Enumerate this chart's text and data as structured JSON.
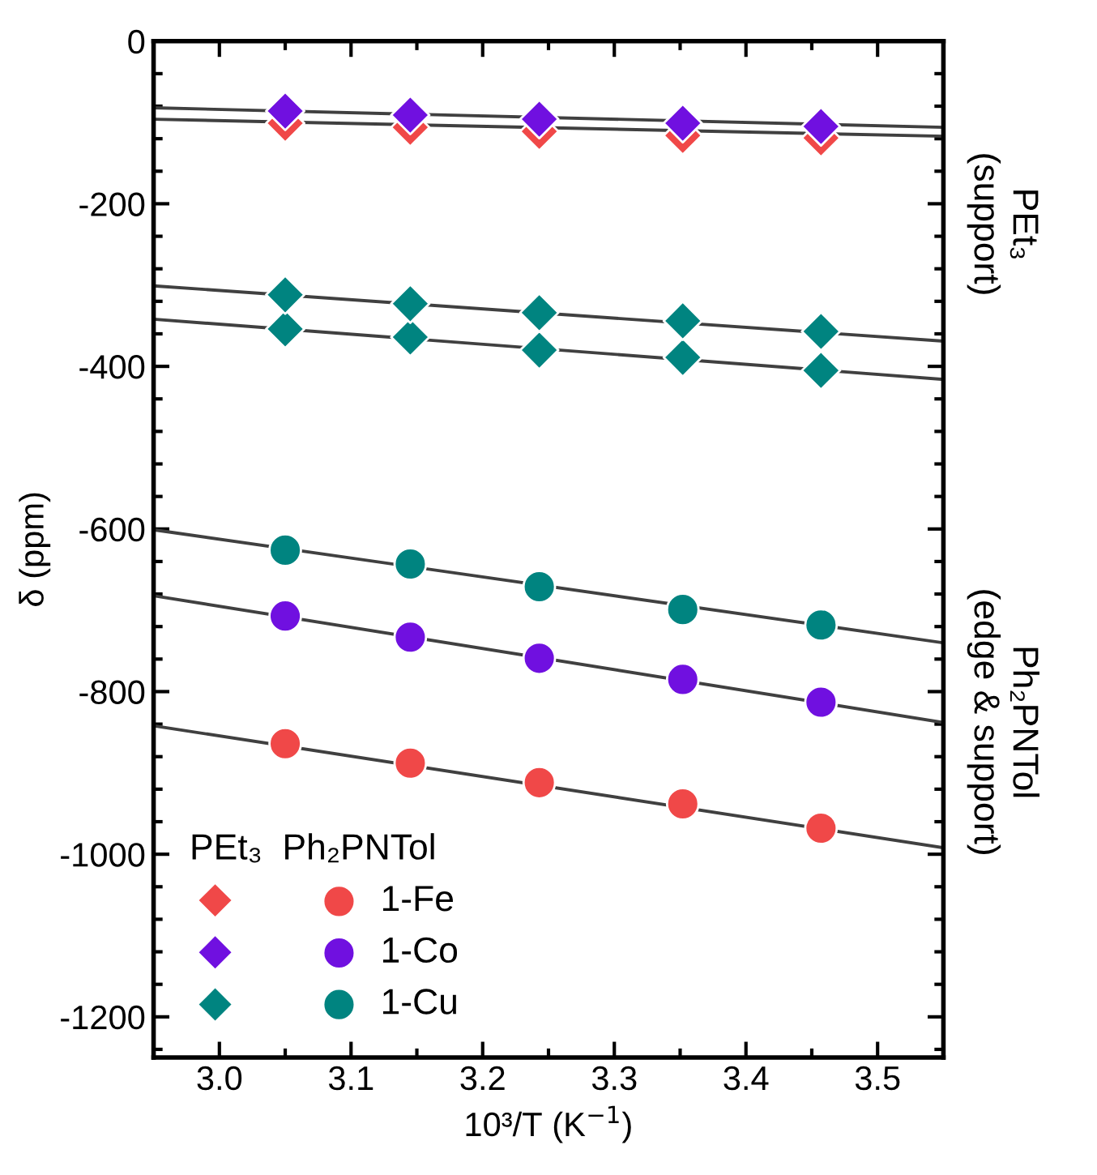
{
  "chart_data": {
    "type": "scatter",
    "xlabel": "10³/T (K$^{−1}$)",
    "ylabel": "δ (ppm)",
    "xlim": [
      2.95,
      3.55
    ],
    "xticks": [
      {
        "value": 3.0,
        "label": "3.0"
      },
      3.1,
      3.2,
      3.3,
      3.4,
      3.5
    ],
    "ylim": [
      -1250,
      0
    ],
    "yticks": [
      -1200,
      -1000,
      -800,
      -600,
      -400,
      -200,
      0
    ],
    "grid": false,
    "legend": "bottom left",
    "legend_title": "PEt₃  Ph₂PNTol",
    "annotations": [
      "PEt₃\n(support)",
      "Ph₂PNTol\n(edge & support)"
    ],
    "series": [
      {
        "color": "#f04848",
        "marker": "diamond",
        "x": [
          3.05,
          3.145,
          3.243,
          3.352,
          3.457
        ],
        "values": [
          -101,
          -106,
          -111,
          -116,
          -119
        ]
      },
      {
        "color": "#7010e0",
        "marker": "diamond",
        "x": [
          3.05,
          3.145,
          3.243,
          3.352,
          3.457
        ],
        "values": [
          -86,
          -91,
          -96,
          -101,
          -105
        ]
      },
      {
        "color": "#008480",
        "marker": "diamond",
        "x": [
          3.05,
          3.145,
          3.243,
          3.352,
          3.457
        ],
        "values": [
          -354,
          -364,
          -380,
          -389,
          -405
        ]
      },
      {
        "name": "1-Fe",
        "color": "#f04848",
        "marker": "circle",
        "x": [
          3.05,
          3.145,
          3.243,
          3.352,
          3.457
        ],
        "values": [
          -864,
          -888,
          -912,
          -938,
          -968
        ]
      },
      {
        "name": "1-Co",
        "color": "#7010e0",
        "marker": "circle",
        "x": [
          3.05,
          3.145,
          3.243,
          3.352,
          3.457
        ],
        "values": [
          -707,
          -733,
          -759,
          -785,
          -813
        ]
      },
      {
        "name": "1-Cu",
        "color": "#008480",
        "marker": "circle",
        "x": [
          3.05,
          3.145,
          3.243,
          3.352,
          3.457
        ],
        "values": [
          -626,
          -643,
          -671,
          -699,
          -718
        ]
      },
      {
        "color": "#008480",
        "marker": "diamond",
        "x": [
          3.05,
          3.145,
          3.243,
          3.352,
          3.457
        ],
        "values": [
          -312,
          -323,
          -334,
          -344,
          -357
        ]
      },
      {
        "type": "line",
        "color": "#404040",
        "x": [
          2.95,
          3.55
        ],
        "values": [
          -96,
          -117
        ]
      },
      {
        "type": "line",
        "color": "#404040",
        "x": [
          2.95,
          3.55
        ],
        "values": [
          -82,
          -106
        ]
      },
      {
        "type": "line",
        "color": "#404040",
        "x": [
          2.95,
          3.55
        ],
        "values": [
          -301,
          -369
        ]
      },
      {
        "type": "line",
        "color": "#404040",
        "x": [
          2.95,
          3.55
        ],
        "values": [
          -342,
          -416
        ]
      },
      {
        "type": "line",
        "color": "#404040",
        "x": [
          2.95,
          3.55
        ],
        "values": [
          -601,
          -740
        ]
      },
      {
        "type": "line",
        "color": "#404040",
        "x": [
          2.95,
          3.55
        ],
        "values": [
          -682,
          -838
        ]
      },
      {
        "type": "line",
        "color": "#404040",
        "x": [
          2.95,
          3.55
        ],
        "values": [
          -842,
          -992
        ]
      }
    ]
  }
}
